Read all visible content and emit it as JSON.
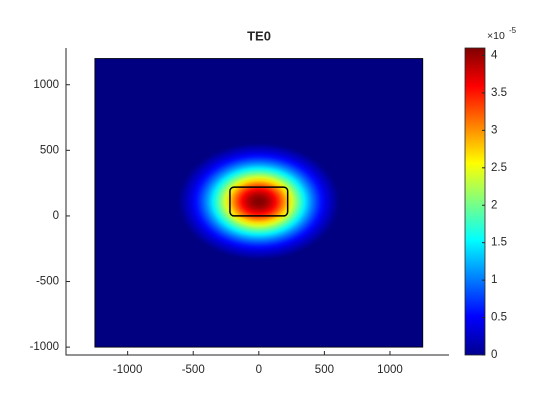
{
  "chart_data": {
    "type": "heatmap",
    "title": "TE0",
    "xlim": [
      -1470,
      1450
    ],
    "ylim": [
      -1060,
      1280
    ],
    "xticks": [
      -1000,
      -500,
      0,
      500,
      1000
    ],
    "yticks": [
      -1000,
      -500,
      0,
      500,
      1000
    ],
    "domain": {
      "x": [
        -1250,
        1250
      ],
      "y": [
        -1000,
        1200
      ]
    },
    "waveguide": {
      "x": [
        -220,
        220
      ],
      "y": [
        0,
        220
      ]
    },
    "peak": {
      "x": 0,
      "y": 110,
      "value": 4.1e-05
    },
    "colorbar": {
      "clim": [
        0,
        4.1e-05
      ],
      "ticks": [
        0,
        {
          "value": 5e-06,
          "label": "0.5"
        },
        {
          "value": 1e-05,
          "label": "1"
        },
        {
          "value": 1.5e-05,
          "label": "1.5"
        },
        {
          "value": 2e-05,
          "label": "2"
        },
        {
          "value": 2.5e-05,
          "label": "2.5"
        },
        {
          "value": 3e-05,
          "label": "3"
        },
        {
          "value": 3.5e-05,
          "label": "3.5"
        },
        {
          "value": 4e-05,
          "label": "4"
        }
      ],
      "exponent_base": "×10",
      "exponent": "-5",
      "colormap": "jet"
    }
  }
}
